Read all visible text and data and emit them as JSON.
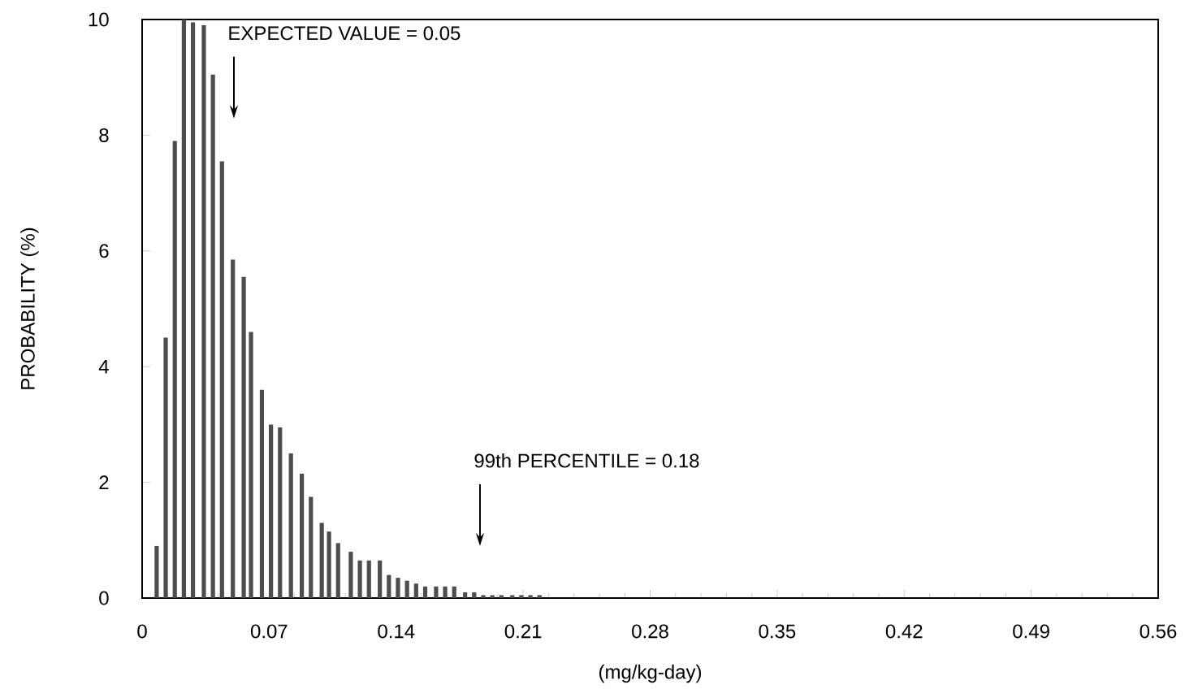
{
  "chart_data": {
    "type": "bar",
    "xlabel": "(mg/kg-day)",
    "ylabel": "PROBABILITY (%)",
    "x": [
      0.008,
      0.013,
      0.018,
      0.023,
      0.028,
      0.034,
      0.039,
      0.044,
      0.05,
      0.056,
      0.06,
      0.066,
      0.071,
      0.076,
      0.082,
      0.088,
      0.093,
      0.099,
      0.103,
      0.108,
      0.115,
      0.12,
      0.125,
      0.131,
      0.136,
      0.141,
      0.146,
      0.151,
      0.156,
      0.162,
      0.167,
      0.172,
      0.178,
      0.183,
      0.188,
      0.193,
      0.198,
      0.204,
      0.209,
      0.214,
      0.219
    ],
    "values": [
      0.9,
      4.5,
      7.9,
      10.0,
      9.95,
      9.9,
      9.05,
      7.55,
      5.85,
      5.55,
      4.6,
      3.6,
      3.0,
      2.95,
      2.5,
      2.15,
      1.75,
      1.3,
      1.15,
      0.95,
      0.8,
      0.65,
      0.65,
      0.65,
      0.4,
      0.35,
      0.3,
      0.25,
      0.2,
      0.2,
      0.2,
      0.2,
      0.1,
      0.1,
      0.05,
      0.05,
      0.05,
      0.05,
      0.05,
      0.05,
      0.05
    ],
    "color": "#4d4d4d",
    "xlim": [
      0,
      0.56
    ],
    "xticks": [
      0,
      0.07,
      0.14,
      0.21,
      0.28,
      0.35,
      0.42,
      0.49,
      0.56
    ],
    "ylim": [
      0,
      10
    ],
    "yticks": [
      0,
      2,
      4,
      6,
      8,
      10
    ],
    "annotations": [
      "EXPECTED VALUE = 0.05",
      "99th PERCENTILE = 0.18"
    ]
  }
}
